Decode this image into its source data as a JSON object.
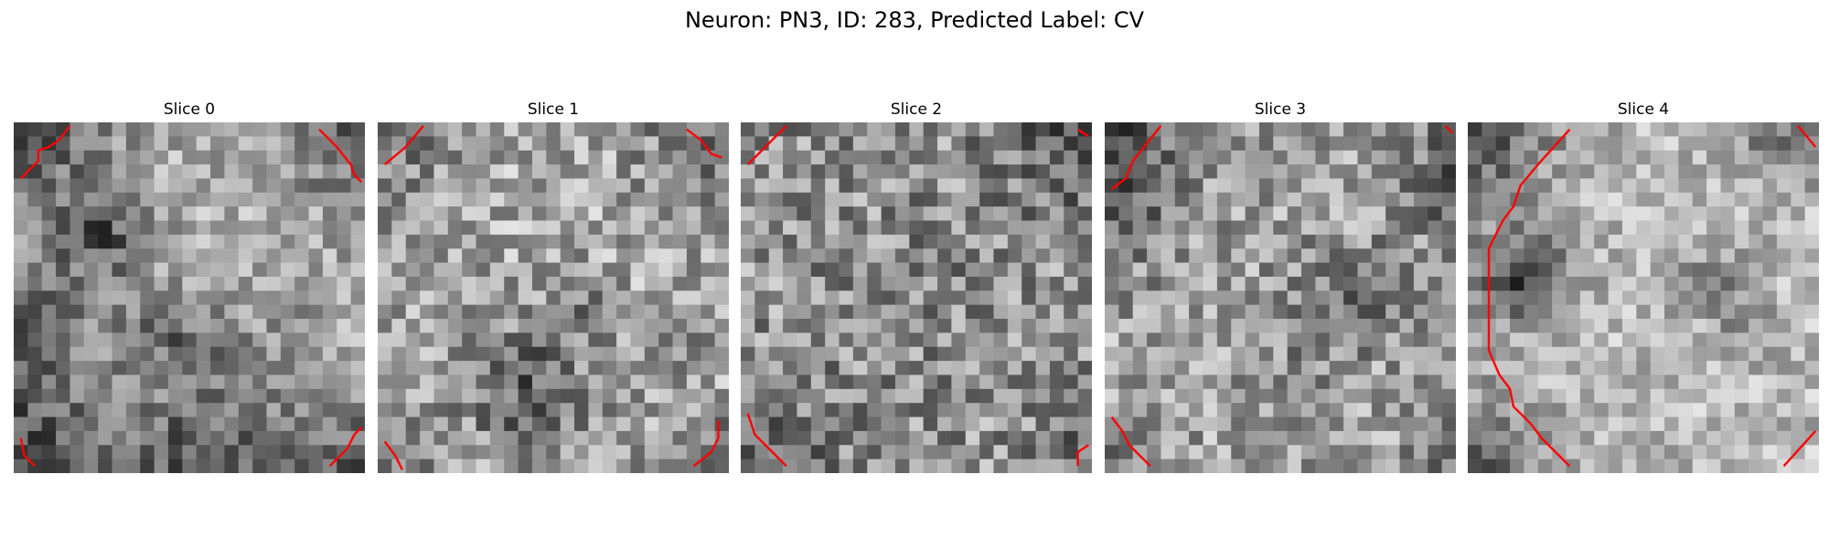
{
  "figure": {
    "title": "Neuron: PN3, ID: 283, Predicted Label: CV"
  },
  "colors": {
    "contour": "#ff0000",
    "background": "#ffffff"
  },
  "panels": [
    {
      "title": "Slice 0",
      "seed": 11,
      "brightness": 0.68,
      "contrast": 0.2,
      "blobs": [
        [
          0.25,
          0.33,
          0.09,
          -0.32
        ],
        [
          0.42,
          0.58,
          0.08,
          -0.28
        ],
        [
          0.82,
          0.5,
          0.07,
          -0.18
        ],
        [
          0.6,
          0.62,
          0.06,
          -0.12
        ]
      ],
      "corners": [
        [
          0.0,
          0.0,
          0.2,
          -0.35
        ],
        [
          1.0,
          0.0,
          0.17,
          -0.28
        ],
        [
          0.0,
          1.0,
          0.21,
          -0.4
        ],
        [
          1.0,
          1.0,
          0.17,
          -0.28
        ],
        [
          0.55,
          1.0,
          0.18,
          -0.35
        ],
        [
          0.0,
          0.6,
          0.13,
          -0.3
        ]
      ],
      "contours": [
        [
          [
            0.02,
            0.16
          ],
          [
            0.07,
            0.11
          ],
          [
            0.07,
            0.08
          ],
          [
            0.1,
            0.07
          ],
          [
            0.13,
            0.05
          ],
          [
            0.16,
            0.01
          ]
        ],
        [
          [
            0.87,
            0.02
          ],
          [
            0.92,
            0.07
          ],
          [
            0.96,
            0.12
          ],
          [
            0.97,
            0.15
          ],
          [
            0.99,
            0.17
          ]
        ],
        [
          [
            0.02,
            0.9
          ],
          [
            0.03,
            0.95
          ],
          [
            0.06,
            0.98
          ]
        ],
        [
          [
            0.9,
            0.98
          ],
          [
            0.95,
            0.93
          ],
          [
            0.97,
            0.89
          ],
          [
            0.99,
            0.87
          ]
        ]
      ]
    },
    {
      "title": "Slice 1",
      "seed": 23,
      "brightness": 0.66,
      "contrast": 0.24,
      "blobs": [
        [
          0.43,
          0.76,
          0.13,
          -0.28
        ],
        [
          0.6,
          0.52,
          0.07,
          -0.12
        ],
        [
          0.85,
          0.6,
          0.06,
          -0.12
        ]
      ],
      "corners": [
        [
          0.0,
          0.0,
          0.16,
          -0.22
        ],
        [
          1.0,
          0.0,
          0.17,
          -0.25
        ],
        [
          0.0,
          1.0,
          0.13,
          -0.22
        ],
        [
          1.0,
          1.0,
          0.13,
          -0.22
        ]
      ],
      "contours": [
        [
          [
            0.02,
            0.12
          ],
          [
            0.08,
            0.07
          ],
          [
            0.13,
            0.01
          ]
        ],
        [
          [
            0.88,
            0.02
          ],
          [
            0.92,
            0.05
          ],
          [
            0.95,
            0.09
          ],
          [
            0.98,
            0.1
          ]
        ],
        [
          [
            0.02,
            0.91
          ],
          [
            0.05,
            0.95
          ],
          [
            0.07,
            0.99
          ]
        ],
        [
          [
            0.9,
            0.98
          ],
          [
            0.95,
            0.94
          ],
          [
            0.97,
            0.9
          ],
          [
            0.97,
            0.85
          ]
        ]
      ]
    },
    {
      "title": "Slice 2",
      "seed": 37,
      "brightness": 0.58,
      "contrast": 0.26,
      "blobs": [
        [
          0.5,
          0.5,
          0.22,
          -0.05
        ]
      ],
      "corners": [
        [
          1.0,
          0.0,
          0.16,
          -0.32
        ],
        [
          0.0,
          1.0,
          0.16,
          -0.25
        ],
        [
          1.0,
          1.0,
          0.12,
          -0.18
        ],
        [
          0.0,
          0.0,
          0.09,
          -0.1
        ]
      ],
      "contours": [
        [
          [
            0.02,
            0.12
          ],
          [
            0.07,
            0.07
          ],
          [
            0.13,
            0.01
          ]
        ],
        [
          [
            0.96,
            0.02
          ],
          [
            0.99,
            0.04
          ]
        ],
        [
          [
            0.02,
            0.83
          ],
          [
            0.04,
            0.89
          ],
          [
            0.09,
            0.94
          ],
          [
            0.13,
            0.98
          ]
        ],
        [
          [
            0.96,
            0.98
          ],
          [
            0.96,
            0.94
          ],
          [
            0.99,
            0.92
          ]
        ]
      ]
    },
    {
      "title": "Slice 3",
      "seed": 53,
      "brightness": 0.63,
      "contrast": 0.24,
      "blobs": [
        [
          0.62,
          0.56,
          0.12,
          -0.15
        ],
        [
          0.75,
          0.45,
          0.08,
          -0.12
        ]
      ],
      "corners": [
        [
          0.0,
          0.2,
          0.15,
          -0.28
        ],
        [
          0.0,
          0.0,
          0.12,
          -0.2
        ],
        [
          1.0,
          0.15,
          0.12,
          -0.25
        ],
        [
          1.0,
          1.0,
          0.1,
          -0.15
        ],
        [
          0.0,
          1.0,
          0.1,
          -0.18
        ]
      ],
      "contours": [
        [
          [
            0.02,
            0.19
          ],
          [
            0.06,
            0.16
          ],
          [
            0.08,
            0.11
          ],
          [
            0.12,
            0.06
          ],
          [
            0.16,
            0.01
          ]
        ],
        [
          [
            0.97,
            0.01
          ],
          [
            0.99,
            0.03
          ]
        ],
        [
          [
            0.02,
            0.84
          ],
          [
            0.05,
            0.88
          ],
          [
            0.07,
            0.92
          ],
          [
            0.13,
            0.98
          ]
        ]
      ]
    },
    {
      "title": "Slice 4",
      "seed": 71,
      "brightness": 0.72,
      "contrast": 0.18,
      "blobs": [
        [
          0.15,
          0.45,
          0.09,
          -0.45
        ],
        [
          0.7,
          0.45,
          0.07,
          -0.2
        ],
        [
          0.8,
          0.6,
          0.06,
          -0.15
        ]
      ],
      "corners": [
        [
          0.0,
          0.0,
          0.17,
          -0.42
        ],
        [
          0.0,
          1.0,
          0.15,
          -0.38
        ],
        [
          1.0,
          0.0,
          0.1,
          -0.18
        ],
        [
          0.85,
          0.02,
          0.08,
          -0.2
        ]
      ],
      "contours": [
        [
          [
            0.29,
            0.02
          ],
          [
            0.2,
            0.12
          ],
          [
            0.15,
            0.18
          ],
          [
            0.13,
            0.24
          ],
          [
            0.1,
            0.28
          ],
          [
            0.06,
            0.36
          ],
          [
            0.06,
            0.65
          ],
          [
            0.09,
            0.72
          ],
          [
            0.12,
            0.76
          ],
          [
            0.13,
            0.81
          ],
          [
            0.18,
            0.86
          ],
          [
            0.21,
            0.9
          ],
          [
            0.29,
            0.98
          ]
        ],
        [
          [
            0.94,
            0.01
          ],
          [
            0.99,
            0.07
          ]
        ],
        [
          [
            0.9,
            0.98
          ],
          [
            0.99,
            0.88
          ]
        ]
      ]
    }
  ]
}
